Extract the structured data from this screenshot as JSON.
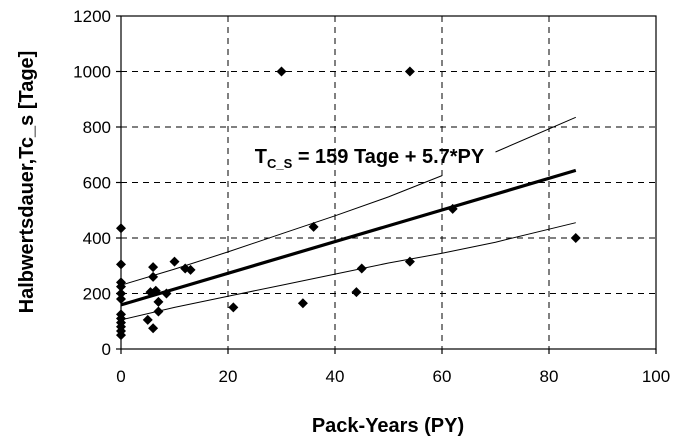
{
  "chart_data": {
    "type": "scatter",
    "xlabel": "Pack-Years (PY)",
    "ylabel": "Halbwertsdauer,Tc_s [Tage]",
    "xlim": [
      0,
      100
    ],
    "ylim": [
      0,
      1200
    ],
    "xticks": [
      0,
      20,
      40,
      60,
      80,
      100
    ],
    "yticks": [
      0,
      200,
      400,
      600,
      800,
      1000,
      1200
    ],
    "xtick_labels": [
      "0",
      "20",
      "40",
      "60",
      "80",
      "100"
    ],
    "ytick_labels": [
      "0",
      "200",
      "400",
      "600",
      "800",
      "1000",
      "1200"
    ],
    "grid": "on (dashed)",
    "legend": "none",
    "marker": "diamond",
    "points": [
      {
        "x": 0,
        "y": 435
      },
      {
        "x": 0,
        "y": 305
      },
      {
        "x": 0,
        "y": 240
      },
      {
        "x": 0,
        "y": 225
      },
      {
        "x": 0,
        "y": 200
      },
      {
        "x": 0,
        "y": 180
      },
      {
        "x": 0,
        "y": 125
      },
      {
        "x": 0,
        "y": 110
      },
      {
        "x": 0,
        "y": 95
      },
      {
        "x": 0,
        "y": 80
      },
      {
        "x": 0,
        "y": 65
      },
      {
        "x": 0,
        "y": 50
      },
      {
        "x": 5,
        "y": 105
      },
      {
        "x": 5.5,
        "y": 205
      },
      {
        "x": 6,
        "y": 295
      },
      {
        "x": 6,
        "y": 260
      },
      {
        "x": 6.5,
        "y": 210
      },
      {
        "x": 6,
        "y": 75
      },
      {
        "x": 7,
        "y": 170
      },
      {
        "x": 7,
        "y": 135
      },
      {
        "x": 8.5,
        "y": 200
      },
      {
        "x": 10,
        "y": 315
      },
      {
        "x": 12,
        "y": 290
      },
      {
        "x": 13,
        "y": 285
      },
      {
        "x": 21,
        "y": 150
      },
      {
        "x": 30,
        "y": 1000
      },
      {
        "x": 34,
        "y": 165
      },
      {
        "x": 36,
        "y": 440
      },
      {
        "x": 44,
        "y": 205
      },
      {
        "x": 45,
        "y": 290
      },
      {
        "x": 54,
        "y": 1000
      },
      {
        "x": 54,
        "y": 315
      },
      {
        "x": 62,
        "y": 505
      },
      {
        "x": 85,
        "y": 400
      }
    ],
    "regression": {
      "intercept": 159,
      "slope": 5.7,
      "x_range": [
        0,
        85
      ]
    },
    "upper_band": [
      {
        "x": 0,
        "y": 230
      },
      {
        "x": 10,
        "y": 288
      },
      {
        "x": 20,
        "y": 350
      },
      {
        "x": 30,
        "y": 415
      },
      {
        "x": 40,
        "y": 480
      },
      {
        "x": 50,
        "y": 548
      },
      {
        "x": 60,
        "y": 625
      }
    ],
    "upper_band_2": [
      {
        "x": 70,
        "y": 710
      },
      {
        "x": 85,
        "y": 835
      }
    ],
    "lower_band": [
      {
        "x": 0,
        "y": 105
      },
      {
        "x": 10,
        "y": 150
      },
      {
        "x": 20,
        "y": 190
      },
      {
        "x": 30,
        "y": 230
      },
      {
        "x": 40,
        "y": 270
      },
      {
        "x": 50,
        "y": 310
      },
      {
        "x": 60,
        "y": 345
      },
      {
        "x": 70,
        "y": 385
      },
      {
        "x": 85,
        "y": 455
      }
    ],
    "annotation": {
      "main": "T",
      "sub": "C_S",
      "rest": " = 159 Tage + 5.7*PY",
      "x": 25,
      "y": 670
    }
  }
}
